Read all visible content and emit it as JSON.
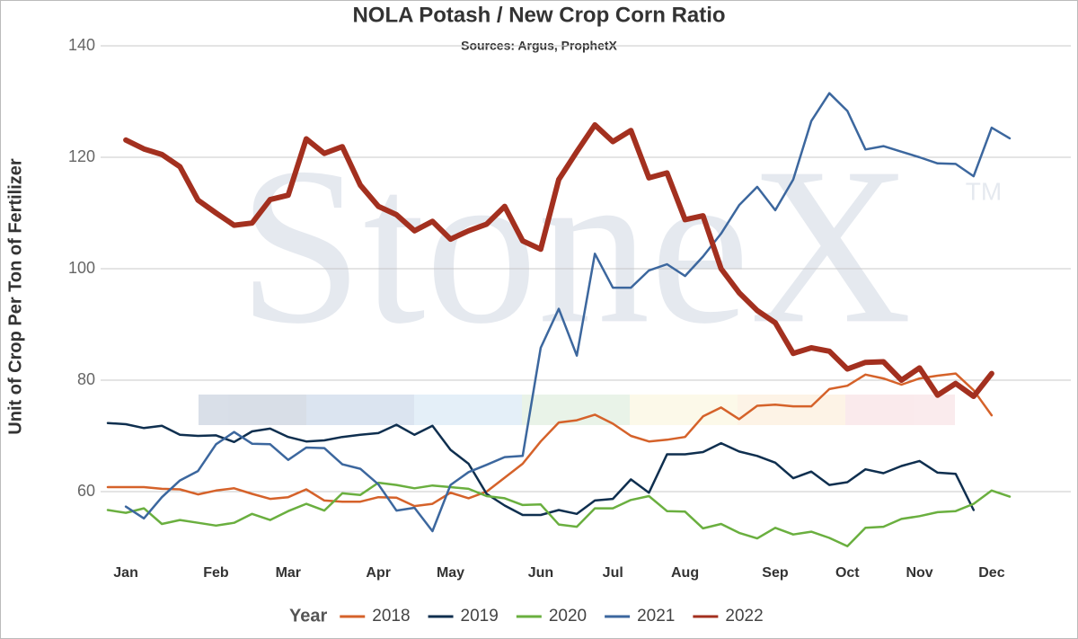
{
  "chart_data": {
    "type": "line",
    "title": "NOLA Potash / New Crop Corn Ratio",
    "subtitle": "Sources: Argus, ProphetX",
    "y_label": "Unit of Crop Per Ton of Fertilizer",
    "watermark": "StoneX",
    "watermark_mark": "TM",
    "legend_title": "Year",
    "legend": "bottom",
    "grid": true,
    "ylim": [
      50,
      140
    ],
    "yticks": [
      60,
      80,
      100,
      120,
      140
    ],
    "categories": [
      null,
      "Jan",
      null,
      null,
      null,
      null,
      "Feb",
      null,
      null,
      null,
      "Mar",
      null,
      null,
      null,
      null,
      "Apr",
      null,
      null,
      null,
      "May",
      null,
      null,
      null,
      null,
      "Jun",
      null,
      null,
      null,
      "Jul",
      null,
      null,
      null,
      "Aug",
      null,
      null,
      null,
      null,
      "Sep",
      null,
      null,
      null,
      "Oct",
      null,
      null,
      null,
      "Nov",
      null,
      null,
      null,
      "Dec",
      null
    ],
    "series": [
      {
        "name": "2018",
        "color": "#d5622a",
        "width": 2.5,
        "values": [
          60.8,
          60.8,
          60.8,
          60.5,
          60.4,
          59.5,
          60.2,
          60.6,
          59.6,
          58.7,
          59,
          60.4,
          58.4,
          58.2,
          58.2,
          59,
          58.9,
          57.4,
          57.8,
          59.8,
          58.8,
          60,
          62.5,
          65,
          69,
          72.4,
          72.8,
          73.8,
          72.2,
          70,
          69,
          69.3,
          69.8,
          73.5,
          75.1,
          73,
          75.4,
          75.6,
          75.3,
          75.3,
          78.4,
          79,
          81,
          80.3,
          79.2,
          80.3,
          80.8,
          81.2,
          78.2,
          73.7,
          null
        ]
      },
      {
        "name": "2019",
        "color": "#0f2f4f",
        "width": 2.5,
        "values": [
          72.3,
          72.1,
          71.4,
          71.8,
          70.2,
          70,
          70.1,
          68.9,
          70.8,
          71.3,
          69.8,
          69,
          69.2,
          69.8,
          70.2,
          70.5,
          72,
          70.2,
          71.8,
          67.5,
          65,
          59.6,
          57.5,
          55.8,
          55.8,
          56.7,
          56,
          58.4,
          58.7,
          62.2,
          59.8,
          66.7,
          66.7,
          67.1,
          68.7,
          67.2,
          66.4,
          65.2,
          62.4,
          63.6,
          61.2,
          61.7,
          64,
          63.3,
          64.6,
          65.5,
          63.4,
          63.2,
          56.7,
          null,
          null
        ]
      },
      {
        "name": "2020",
        "color": "#6aaf3f",
        "width": 2.5,
        "values": [
          56.7,
          56.2,
          57,
          54.2,
          54.9,
          54.4,
          53.9,
          54.4,
          56,
          54.9,
          56.5,
          57.8,
          56.6,
          59.7,
          59.4,
          61.6,
          61.2,
          60.6,
          61.1,
          60.8,
          60.5,
          59.2,
          58.8,
          57.6,
          57.7,
          54.1,
          53.7,
          57,
          57,
          58.5,
          59.2,
          56.5,
          56.4,
          53.4,
          54.2,
          52.6,
          51.6,
          53.5,
          52.3,
          52.8,
          51.7,
          50.2,
          53.5,
          53.7,
          55.1,
          55.6,
          56.3,
          56.5,
          57.8,
          60.2,
          59.1
        ]
      },
      {
        "name": "2021",
        "color": "#3c679e",
        "width": 2.5,
        "values": [
          null,
          57.3,
          55.2,
          59,
          62,
          63.7,
          68.5,
          70.7,
          68.6,
          68.5,
          65.7,
          67.9,
          67.8,
          64.9,
          64.1,
          61.3,
          56.6,
          57.1,
          52.9,
          61.2,
          63.5,
          64.8,
          66.2,
          66.4,
          85.8,
          92.8,
          84.4,
          102.7,
          96.6,
          96.6,
          99.7,
          100.8,
          98.7,
          102.2,
          106.3,
          111.4,
          114.7,
          110.5,
          116,
          126.5,
          131.5,
          128.3,
          121.4,
          122,
          121,
          120,
          118.9,
          118.8,
          116.6,
          125.3,
          123.4
        ]
      },
      {
        "name": "2022",
        "color": "#a3301f",
        "width": 6,
        "values": [
          null,
          123.1,
          121.5,
          120.5,
          118.3,
          112.3,
          110,
          107.8,
          108.2,
          112.4,
          113.2,
          123.3,
          120.7,
          121.9,
          115,
          111.2,
          109.7,
          106.8,
          108.5,
          105.3,
          106.8,
          108,
          111.2,
          105,
          103.5,
          116,
          121,
          125.8,
          122.8,
          124.8,
          116.3,
          117.2,
          108.8,
          109.5,
          100,
          95.7,
          92.5,
          90.3,
          84.8,
          85.8,
          85.2,
          82,
          83.2,
          83.3,
          80,
          82.2,
          77.3,
          79.4,
          77.1,
          81.2,
          null
        ]
      }
    ]
  }
}
